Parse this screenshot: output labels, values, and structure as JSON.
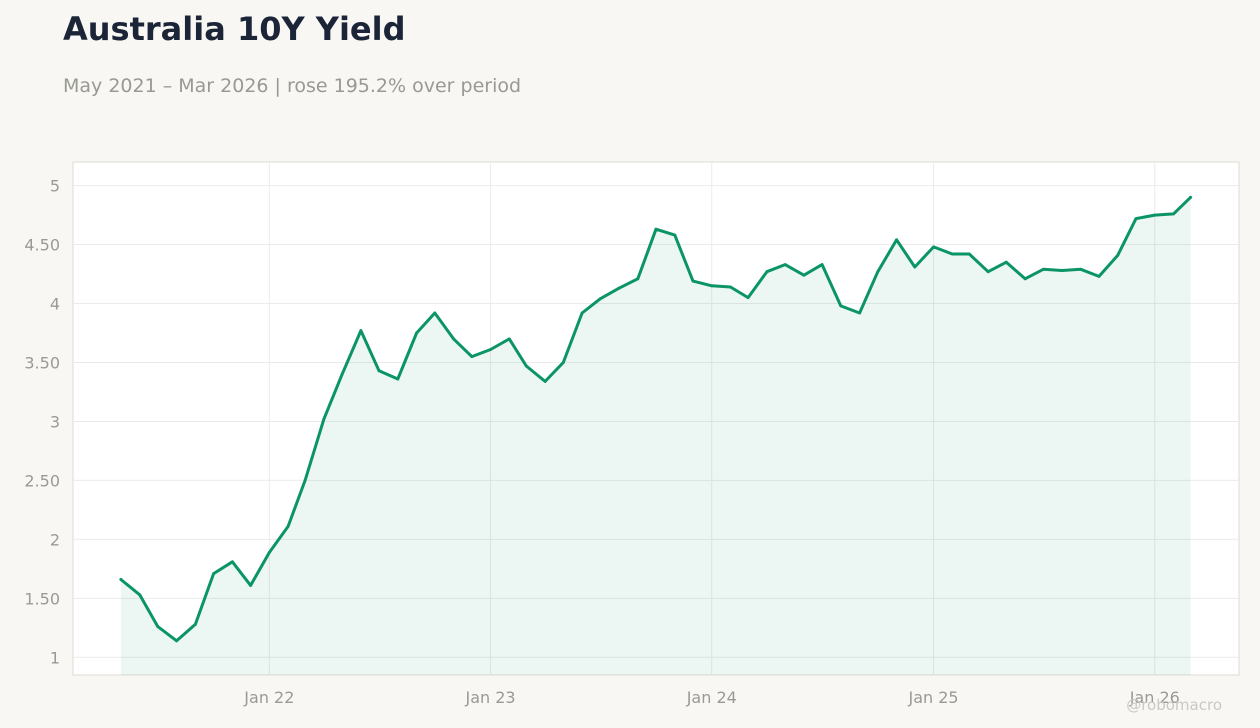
{
  "header": {
    "title": "Australia 10Y Yield",
    "subtitle": "May 2021 – Mar 2026 | rose 195.2% over period"
  },
  "watermark": "@robomacro",
  "colors": {
    "line": "#0b9467",
    "area": "#0b9467",
    "background": "#f8f7f4",
    "plot_background": "#ffffff"
  },
  "chart_data": {
    "type": "area",
    "title": "Australia 10Y Yield",
    "subtitle": "May 2021 – Mar 2026 | rose 195.2% over period",
    "xlabel": "",
    "ylabel": "",
    "ylim": [
      0.85,
      5.2
    ],
    "xlim": [
      "2021-02-11",
      "2026-05-20"
    ],
    "grid": true,
    "y_ticks": [
      1,
      1.5,
      2,
      2.5,
      3,
      3.5,
      4,
      4.5,
      5
    ],
    "y_tick_labels": [
      "1",
      "1.50",
      "2",
      "2.50",
      "3",
      "3.50",
      "4",
      "4.50",
      "5"
    ],
    "x_ticks": [
      "2022-01-01",
      "2023-01-01",
      "2024-01-01",
      "2025-01-01",
      "2026-01-01"
    ],
    "x_tick_labels": [
      "Jan 22",
      "Jan 23",
      "Jan 24",
      "Jan 25",
      "Jan 26"
    ],
    "series": [
      {
        "x": [
          "2021-05-01",
          "2021-06-01",
          "2021-07-01",
          "2021-08-01",
          "2021-09-01",
          "2021-10-01",
          "2021-11-01",
          "2021-12-01",
          "2022-01-01",
          "2022-02-01",
          "2022-03-01",
          "2022-04-01",
          "2022-05-01",
          "2022-06-01",
          "2022-07-01",
          "2022-08-01",
          "2022-09-01",
          "2022-10-01",
          "2022-11-01",
          "2022-12-01",
          "2023-01-01",
          "2023-02-01",
          "2023-03-01",
          "2023-04-01",
          "2023-05-01",
          "2023-06-01",
          "2023-07-01",
          "2023-08-01",
          "2023-09-01",
          "2023-10-01",
          "2023-11-01",
          "2023-12-01",
          "2024-01-01",
          "2024-02-01",
          "2024-03-01",
          "2024-04-01",
          "2024-05-01",
          "2024-06-01",
          "2024-07-01",
          "2024-08-01",
          "2024-09-01",
          "2024-10-01",
          "2024-11-01",
          "2024-12-01",
          "2025-01-01",
          "2025-02-01",
          "2025-03-01",
          "2025-04-01",
          "2025-05-01",
          "2025-06-01",
          "2025-07-01",
          "2025-08-01",
          "2025-09-01",
          "2025-10-01",
          "2025-11-01",
          "2025-12-01",
          "2026-01-01",
          "2026-02-01",
          "2026-03-01"
        ],
        "values": [
          1.66,
          1.53,
          1.26,
          1.14,
          1.28,
          1.71,
          1.81,
          1.61,
          1.89,
          2.11,
          2.5,
          3.02,
          3.4,
          3.77,
          3.43,
          3.36,
          3.75,
          3.92,
          3.7,
          3.55,
          3.61,
          3.7,
          3.47,
          3.34,
          3.5,
          3.92,
          4.04,
          4.13,
          4.21,
          4.63,
          4.58,
          4.19,
          4.15,
          4.14,
          4.05,
          4.27,
          4.33,
          4.24,
          4.33,
          3.98,
          3.92,
          4.27,
          4.54,
          4.31,
          4.48,
          4.42,
          4.42,
          4.27,
          4.35,
          4.21,
          4.29,
          4.28,
          4.29,
          4.23,
          4.41,
          4.72,
          4.75,
          4.76,
          4.9
        ]
      }
    ]
  }
}
